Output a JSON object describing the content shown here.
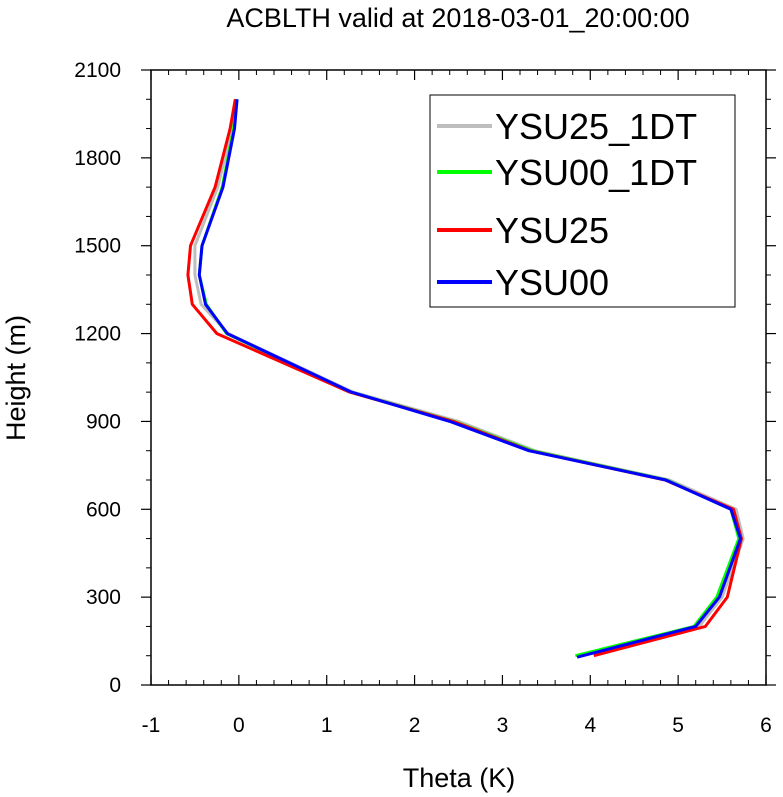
{
  "chart_data": {
    "type": "line",
    "title": "ACBLTH valid at 2018-03-01_20:00:00",
    "xlabel": "Theta (K)",
    "ylabel": "Height (m)",
    "xlim": [
      -1,
      6
    ],
    "ylim": [
      0,
      2100
    ],
    "xticks": [
      -1,
      0,
      1,
      2,
      3,
      4,
      5,
      6
    ],
    "yticks": [
      0,
      300,
      600,
      900,
      1200,
      1500,
      1800,
      2100
    ],
    "xtick_labels": [
      "-1",
      "0",
      "1",
      "2",
      "3",
      "4",
      "5",
      "6"
    ],
    "ytick_labels": [
      "0",
      "300",
      "600",
      "900",
      "1200",
      "1500",
      "1800",
      "2100"
    ],
    "grid": false,
    "legend_position": "top-right",
    "series": [
      {
        "name": "YSU25_1DT",
        "color": "#bebebe",
        "points": [
          [
            3.87,
            100
          ],
          [
            5.24,
            200
          ],
          [
            5.5,
            300
          ],
          [
            5.74,
            500
          ],
          [
            5.66,
            600
          ],
          [
            4.9,
            700
          ],
          [
            3.37,
            800
          ],
          [
            2.5,
            900
          ],
          [
            1.3,
            1000
          ],
          [
            -0.12,
            1200
          ],
          [
            -0.43,
            1300
          ],
          [
            -0.5,
            1400
          ],
          [
            -0.5,
            1500
          ],
          [
            -0.24,
            1700
          ],
          [
            -0.08,
            1900
          ],
          [
            -0.03,
            2000
          ]
        ]
      },
      {
        "name": "YSU00_1DT",
        "color": "#00ff00",
        "points": [
          [
            3.83,
            100
          ],
          [
            5.18,
            200
          ],
          [
            5.44,
            300
          ],
          [
            5.69,
            500
          ],
          [
            5.6,
            600
          ],
          [
            4.87,
            700
          ],
          [
            3.34,
            800
          ],
          [
            2.45,
            900
          ],
          [
            1.27,
            1000
          ],
          [
            -0.14,
            1200
          ],
          [
            -0.37,
            1300
          ],
          [
            -0.45,
            1400
          ],
          [
            -0.42,
            1500
          ],
          [
            -0.19,
            1700
          ],
          [
            -0.06,
            1900
          ],
          [
            -0.03,
            2000
          ]
        ]
      },
      {
        "name": "YSU25",
        "color": "#ff0000",
        "points": [
          [
            4.04,
            100
          ],
          [
            5.31,
            200
          ],
          [
            5.56,
            300
          ],
          [
            5.72,
            500
          ],
          [
            5.63,
            600
          ],
          [
            4.85,
            700
          ],
          [
            3.31,
            800
          ],
          [
            2.44,
            900
          ],
          [
            1.26,
            1000
          ],
          [
            -0.25,
            1200
          ],
          [
            -0.53,
            1300
          ],
          [
            -0.58,
            1400
          ],
          [
            -0.55,
            1500
          ],
          [
            -0.27,
            1700
          ],
          [
            -0.1,
            1900
          ],
          [
            -0.04,
            2000
          ]
        ]
      },
      {
        "name": "YSU00",
        "color": "#0000ff",
        "points": [
          [
            3.85,
            95
          ],
          [
            5.2,
            200
          ],
          [
            5.47,
            300
          ],
          [
            5.71,
            500
          ],
          [
            5.6,
            600
          ],
          [
            4.86,
            700
          ],
          [
            3.3,
            800
          ],
          [
            2.4,
            900
          ],
          [
            1.28,
            1000
          ],
          [
            -0.13,
            1200
          ],
          [
            -0.38,
            1300
          ],
          [
            -0.45,
            1400
          ],
          [
            -0.42,
            1500
          ],
          [
            -0.18,
            1700
          ],
          [
            -0.05,
            1900
          ],
          [
            -0.02,
            2000
          ]
        ]
      }
    ]
  }
}
